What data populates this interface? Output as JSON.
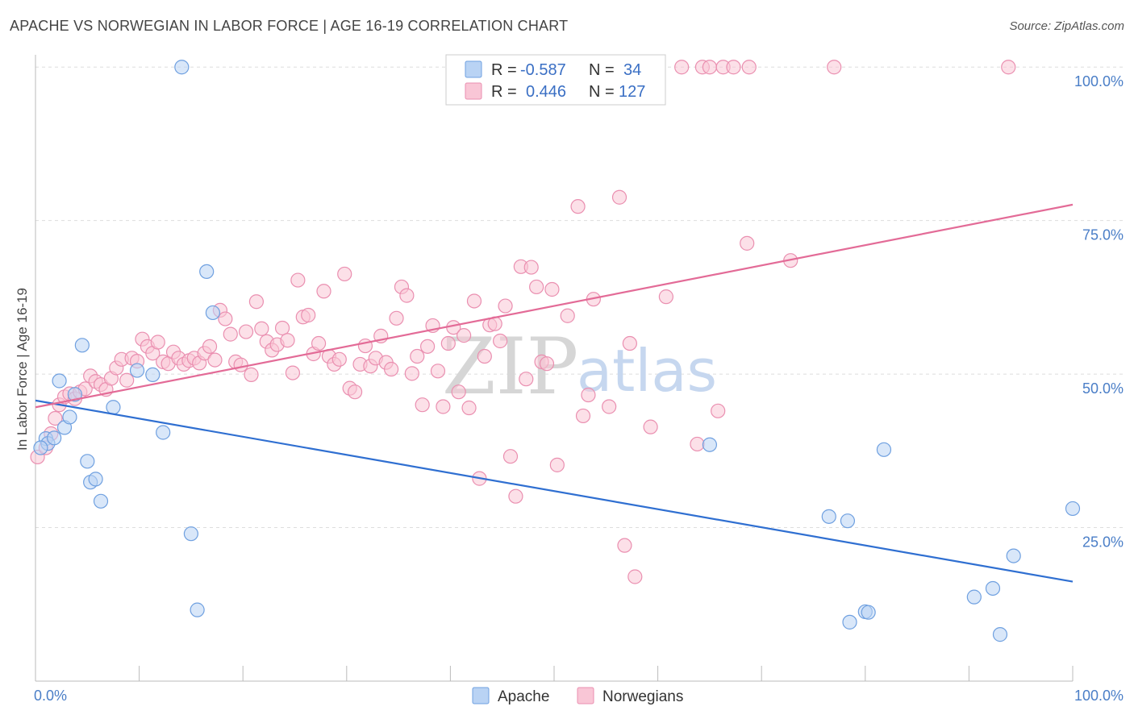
{
  "title": "APACHE VS NORWEGIAN IN LABOR FORCE | AGE 16-19 CORRELATION CHART",
  "source": "Source: ZipAtlas.com",
  "watermark": {
    "zip": "ZIP",
    "atlas": "atlas"
  },
  "colors": {
    "apache_fill": "#b9d3f4",
    "apache_stroke": "#6fa0e0",
    "apache_line": "#2f6fd1",
    "norwegian_fill": "#f9c6d6",
    "norwegian_stroke": "#ea8fb0",
    "norwegian_line": "#e36b97",
    "tick_text": "#4a7ec7",
    "grid": "#dddddd"
  },
  "legend": {
    "rows": [
      {
        "r_label": "R =",
        "r_value": "-0.587",
        "n_label": "N =",
        "n_value": "34"
      },
      {
        "r_label": "R =",
        "r_value": "0.446",
        "n_label": "N =",
        "n_value": "127"
      }
    ]
  },
  "bottom_legend": [
    "Apache",
    "Norwegians"
  ],
  "chart_data": {
    "type": "scatter",
    "title": "APACHE VS NORWEGIAN IN LABOR FORCE | AGE 16-19 CORRELATION CHART",
    "xlabel": "",
    "ylabel": "In Labor Force | Age 16-19",
    "xlim": [
      0,
      100
    ],
    "ylim": [
      0,
      102
    ],
    "x_tick_labels": [
      {
        "value": 0,
        "label": "0.0%"
      },
      {
        "value": 100,
        "label": "100.0%"
      }
    ],
    "y_tick_labels": [
      {
        "value": 25,
        "label": "25.0%"
      },
      {
        "value": 50,
        "label": "50.0%"
      },
      {
        "value": 75,
        "label": "75.0%"
      },
      {
        "value": 100,
        "label": "100.0%"
      }
    ],
    "grid": true,
    "legend_position": "top-center",
    "series": [
      {
        "name": "Apache",
        "trend": {
          "x": [
            0,
            100
          ],
          "y": [
            45.7,
            16.2
          ]
        },
        "points": [
          [
            1.0,
            39.5
          ],
          [
            1.2,
            38.7
          ],
          [
            1.8,
            39.6
          ],
          [
            2.3,
            48.9
          ],
          [
            2.8,
            41.3
          ],
          [
            3.3,
            43.0
          ],
          [
            3.8,
            46.7
          ],
          [
            4.5,
            54.7
          ],
          [
            5.0,
            35.8
          ],
          [
            5.3,
            32.4
          ],
          [
            5.8,
            32.9
          ],
          [
            6.3,
            29.3
          ],
          [
            7.5,
            44.6
          ],
          [
            9.8,
            50.6
          ],
          [
            11.3,
            49.9
          ],
          [
            12.3,
            40.5
          ],
          [
            14.1,
            100.0
          ],
          [
            15.0,
            24.0
          ],
          [
            15.6,
            11.6
          ],
          [
            16.5,
            66.7
          ],
          [
            17.1,
            60.0
          ],
          [
            65.0,
            38.5
          ],
          [
            76.5,
            26.8
          ],
          [
            78.3,
            26.1
          ],
          [
            78.5,
            9.6
          ],
          [
            80.0,
            11.3
          ],
          [
            80.3,
            11.2
          ],
          [
            81.8,
            37.7
          ],
          [
            90.5,
            13.7
          ],
          [
            92.3,
            15.1
          ],
          [
            94.3,
            20.4
          ],
          [
            93.0,
            7.6
          ],
          [
            100.0,
            28.1
          ],
          [
            0.5,
            38.0
          ]
        ]
      },
      {
        "name": "Norwegians",
        "trend": {
          "x": [
            0,
            100
          ],
          "y": [
            44.6,
            77.6
          ]
        },
        "points": [
          [
            0.2,
            36.5
          ],
          [
            1.0,
            38.0
          ],
          [
            1.5,
            40.3
          ],
          [
            1.9,
            42.8
          ],
          [
            2.3,
            45.0
          ],
          [
            2.8,
            46.3
          ],
          [
            3.3,
            46.8
          ],
          [
            3.8,
            46.0
          ],
          [
            4.3,
            47.1
          ],
          [
            4.8,
            47.6
          ],
          [
            5.3,
            49.7
          ],
          [
            5.8,
            48.8
          ],
          [
            6.3,
            48.3
          ],
          [
            6.8,
            47.5
          ],
          [
            7.3,
            49.3
          ],
          [
            7.8,
            51.0
          ],
          [
            8.3,
            52.4
          ],
          [
            8.8,
            49.0
          ],
          [
            9.3,
            52.6
          ],
          [
            9.8,
            52.1
          ],
          [
            10.3,
            55.7
          ],
          [
            10.8,
            54.5
          ],
          [
            11.3,
            53.4
          ],
          [
            11.8,
            55.2
          ],
          [
            12.3,
            52.0
          ],
          [
            12.8,
            51.7
          ],
          [
            13.3,
            53.6
          ],
          [
            13.8,
            52.6
          ],
          [
            14.3,
            51.6
          ],
          [
            14.8,
            52.2
          ],
          [
            15.3,
            52.6
          ],
          [
            15.8,
            51.8
          ],
          [
            16.3,
            53.4
          ],
          [
            16.8,
            54.5
          ],
          [
            17.3,
            52.3
          ],
          [
            17.8,
            60.4
          ],
          [
            18.3,
            59.0
          ],
          [
            18.8,
            56.5
          ],
          [
            19.3,
            52.0
          ],
          [
            19.8,
            51.5
          ],
          [
            20.3,
            56.9
          ],
          [
            20.8,
            49.9
          ],
          [
            21.3,
            61.8
          ],
          [
            21.8,
            57.4
          ],
          [
            22.3,
            55.3
          ],
          [
            22.8,
            53.9
          ],
          [
            23.3,
            54.8
          ],
          [
            23.8,
            57.5
          ],
          [
            24.3,
            55.5
          ],
          [
            24.8,
            50.2
          ],
          [
            25.3,
            65.3
          ],
          [
            25.8,
            59.3
          ],
          [
            26.3,
            59.6
          ],
          [
            26.8,
            53.3
          ],
          [
            27.3,
            55.0
          ],
          [
            27.8,
            63.5
          ],
          [
            28.3,
            52.9
          ],
          [
            28.8,
            51.6
          ],
          [
            29.3,
            52.4
          ],
          [
            29.8,
            66.3
          ],
          [
            30.3,
            47.7
          ],
          [
            30.8,
            47.1
          ],
          [
            31.3,
            51.6
          ],
          [
            31.8,
            54.6
          ],
          [
            32.3,
            51.3
          ],
          [
            32.8,
            52.6
          ],
          [
            33.3,
            56.2
          ],
          [
            33.8,
            51.9
          ],
          [
            34.3,
            50.8
          ],
          [
            34.8,
            59.1
          ],
          [
            35.3,
            64.2
          ],
          [
            35.8,
            62.8
          ],
          [
            36.3,
            50.1
          ],
          [
            36.8,
            52.9
          ],
          [
            37.3,
            45.0
          ],
          [
            37.8,
            54.5
          ],
          [
            38.3,
            57.9
          ],
          [
            38.8,
            50.5
          ],
          [
            39.3,
            44.7
          ],
          [
            39.8,
            55.0
          ],
          [
            40.3,
            57.6
          ],
          [
            40.8,
            47.1
          ],
          [
            41.3,
            56.3
          ],
          [
            41.8,
            44.5
          ],
          [
            42.3,
            61.9
          ],
          [
            42.8,
            33.0
          ],
          [
            43.3,
            52.9
          ],
          [
            43.8,
            58.0
          ],
          [
            44.3,
            58.2
          ],
          [
            44.8,
            55.4
          ],
          [
            45.3,
            61.1
          ],
          [
            45.8,
            36.6
          ],
          [
            46.3,
            30.1
          ],
          [
            46.8,
            67.5
          ],
          [
            47.3,
            49.2
          ],
          [
            47.8,
            67.4
          ],
          [
            48.3,
            64.2
          ],
          [
            48.8,
            52.0
          ],
          [
            49.3,
            51.7
          ],
          [
            49.8,
            63.8
          ],
          [
            50.3,
            35.2
          ],
          [
            51.3,
            59.5
          ],
          [
            52.3,
            77.3
          ],
          [
            52.8,
            43.2
          ],
          [
            53.3,
            46.6
          ],
          [
            53.8,
            62.2
          ],
          [
            55.3,
            44.7
          ],
          [
            56.3,
            78.8
          ],
          [
            56.8,
            22.1
          ],
          [
            57.3,
            55.0
          ],
          [
            57.8,
            17.0
          ],
          [
            58.8,
            100.0
          ],
          [
            59.3,
            41.4
          ],
          [
            60.8,
            62.6
          ],
          [
            62.3,
            100.0
          ],
          [
            63.8,
            38.6
          ],
          [
            64.3,
            100.0
          ],
          [
            65.0,
            100.0
          ],
          [
            65.8,
            44.0
          ],
          [
            66.3,
            100.0
          ],
          [
            67.3,
            100.0
          ],
          [
            68.6,
            71.3
          ],
          [
            68.8,
            100.0
          ],
          [
            72.8,
            68.5
          ],
          [
            77.0,
            100.0
          ],
          [
            93.8,
            100.0
          ],
          [
            57.3,
            100.0
          ]
        ]
      }
    ]
  }
}
